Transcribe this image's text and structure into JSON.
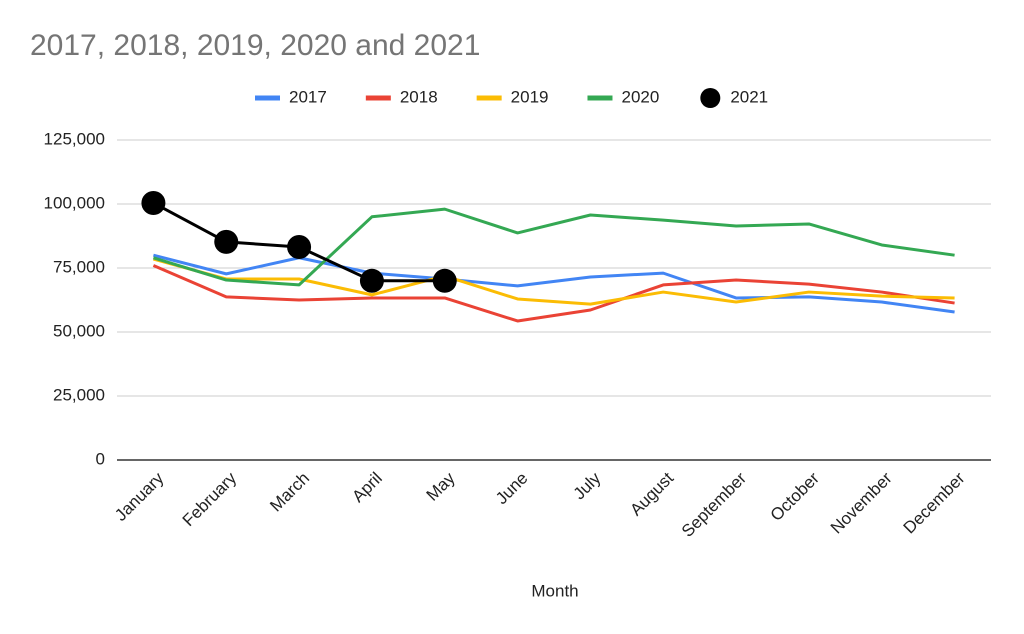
{
  "chart_data": {
    "type": "line",
    "title": "2017, 2018, 2019, 2020 and 2021",
    "x_label": "Month",
    "categories": [
      "January",
      "February",
      "March",
      "April",
      "May",
      "June",
      "July",
      "August",
      "September",
      "October",
      "November",
      "December"
    ],
    "series": [
      {
        "name": "2017",
        "color": "#4285f4",
        "values": [
          80000,
          72700,
          79000,
          73000,
          70700,
          68000,
          71500,
          73000,
          63300,
          63700,
          61700,
          57800
        ]
      },
      {
        "name": "2018",
        "color": "#ea4335",
        "values": [
          76000,
          63700,
          62500,
          63300,
          63300,
          54300,
          58600,
          68400,
          70300,
          68700,
          65600,
          61300
        ]
      },
      {
        "name": "2019",
        "color": "#fbbc04",
        "values": [
          78500,
          70700,
          70700,
          64500,
          71900,
          62900,
          60900,
          65600,
          61700,
          65600,
          64000,
          63300
        ]
      },
      {
        "name": "2020",
        "color": "#34a853",
        "values": [
          79000,
          70300,
          68400,
          95000,
          98000,
          88700,
          95700,
          93700,
          91400,
          92200,
          84000,
          80000
        ]
      },
      {
        "name": "2021",
        "color": "#000000",
        "marker": true,
        "values": [
          100400,
          85200,
          83200,
          70000,
          70000,
          null,
          null,
          null,
          null,
          null,
          null,
          null
        ]
      }
    ],
    "ylim": [
      0,
      125000
    ],
    "yticks": [
      0,
      {
        "value": 25000,
        "label": "25,000"
      },
      {
        "value": 50000,
        "label": "50,000"
      },
      {
        "value": 75000,
        "label": "75,000"
      },
      {
        "value": 100000,
        "label": "100,000"
      },
      {
        "value": 125000,
        "label": "125,000"
      }
    ],
    "grid": true,
    "legend": "top"
  }
}
